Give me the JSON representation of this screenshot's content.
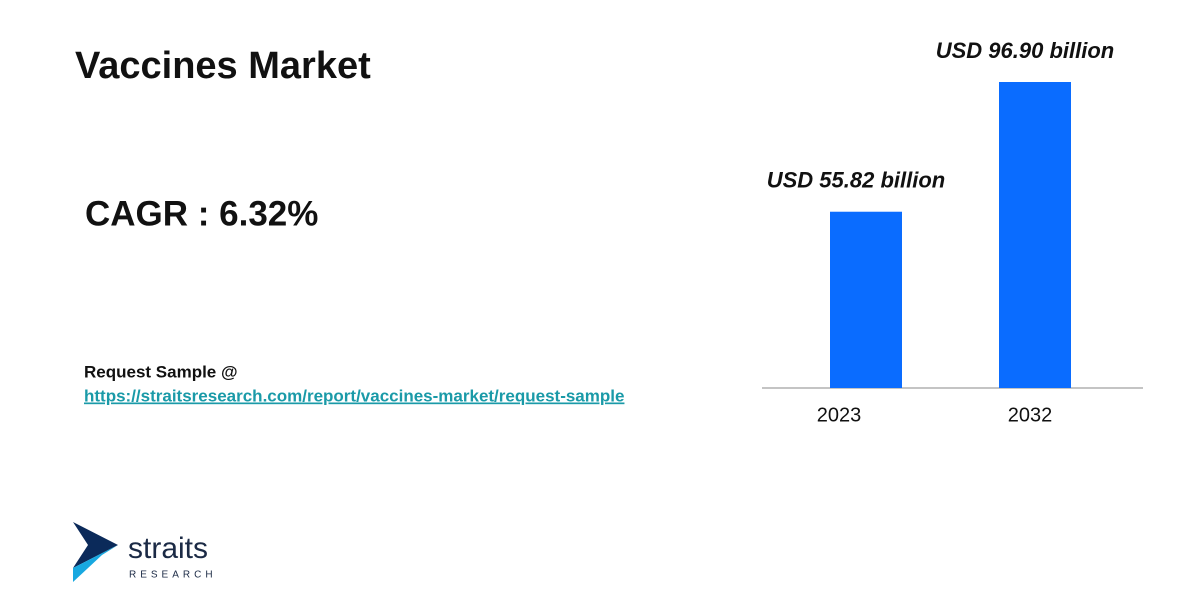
{
  "chart_data": {
    "type": "bar",
    "title": "Vaccines Market",
    "categories": [
      "2023",
      "2032"
    ],
    "values": [
      55.82,
      96.9
    ],
    "value_labels": [
      "USD 55.82 billion",
      "USD 96.90 billion"
    ],
    "color": "#0a6cff"
  },
  "cagr": "CAGR : 6.32%",
  "request": {
    "label": "Request Sample @",
    "link": "https://straitsresearch.com/report/vaccines-market/request-sample"
  },
  "logo": {
    "name": "straits",
    "tagline": "RESEARCH"
  }
}
